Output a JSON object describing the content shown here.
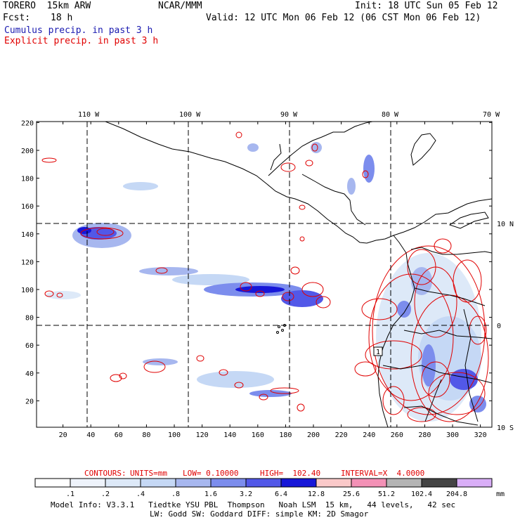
{
  "header": {
    "model": "TORERO  15km ARW",
    "org": "NCAR/MMM",
    "init": "Init: 18 UTC Sun 05 Feb 12",
    "fcst_label": "Fcst:",
    "fcst_value": "18 h",
    "valid": "Valid: 12 UTC Mon 06 Feb 12 (06 CST Mon 06 Feb 12)",
    "line_blue": "Cumulus precip. in past 3 h",
    "line_red": "Explicit precip. in past 3 h"
  },
  "map": {
    "lon_labels": [
      "110 W",
      "100 W",
      "90 W",
      "80 W",
      "70 W"
    ],
    "lat_labels": [
      "10 N",
      "0",
      "10 S"
    ],
    "x_ticks": [
      "20",
      "40",
      "60",
      "80",
      "100",
      "120",
      "140",
      "160",
      "180",
      "200",
      "220",
      "240",
      "260",
      "280",
      "300",
      "320"
    ],
    "y_ticks": [
      "20",
      "40",
      "60",
      "80",
      "100",
      "120",
      "140",
      "160",
      "180",
      "200",
      "220"
    ],
    "marker": "1"
  },
  "contours": {
    "label": "CONTOURS:",
    "units": "UNITS=mm",
    "low": "LOW= 0.10000",
    "high": "HIGH=  102.40",
    "interval": "INTERVAL=X  4.0000"
  },
  "colorbar": {
    "labels": [
      ".1",
      ".2",
      ".4",
      ".8",
      "1.6",
      "3.2",
      "6.4",
      "12.8",
      "25.6",
      "51.2",
      "102.4",
      "204.8"
    ],
    "colors": [
      "#ffffff",
      "#eef3fb",
      "#dde9f8",
      "#c5d8f5",
      "#a7b7ef",
      "#7c8ded",
      "#5258e8",
      "#1717d8",
      "#fac9c9",
      "#f391b6",
      "#b4b4b4",
      "#444444",
      "#d9aef7"
    ],
    "unit": "mm"
  },
  "footer": {
    "line1": "Model Info: V3.3.1   Tiedtke YSU PBL  Thompson   Noah LSM  15 km,   44 levels,   42 sec",
    "line2": "LW: Godd SW: Goddard DIFF: simple KM: 2D Smagor"
  }
}
